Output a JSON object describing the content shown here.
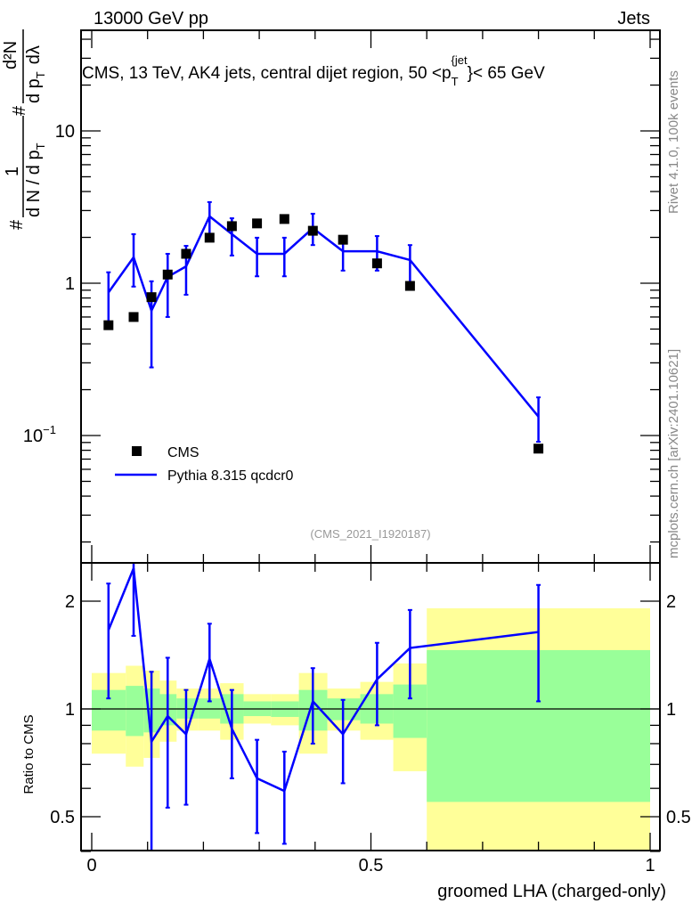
{
  "header": {
    "left": "13000 GeV pp",
    "right": "Jets"
  },
  "side_labels": {
    "rivet": "Rivet 4.1.0,  100k events",
    "mcplots": "mcplots.cern.ch [arXiv:2401.10621]"
  },
  "colors": {
    "cms": "#000000",
    "pythia": "#0000ff",
    "band_inner": "#99ff99",
    "band_outer": "#ffff99"
  },
  "chart_data": [
    {
      "type": "line",
      "title": "CMS, 13 TeV, AK4 jets, central dijet region, 50 <p",
      "title_sub": "T",
      "title_sup": "{jet",
      "title_end": "}< 65 GeV",
      "ylabel_parts": {
        "hash1": "#",
        "one": "1",
        "den1": "d N / d p",
        "sub1": "T",
        "hash2": "#",
        "num2": "d²N",
        "den2": "d p",
        "sub2": "T",
        "dl": "dλ"
      },
      "yscale": "log",
      "ylim": [
        0.0146,
        45
      ],
      "xlim": [
        -0.02,
        1.02
      ],
      "yticks": [
        {
          "v": 0.1,
          "label": "10",
          "sup": "−1"
        },
        {
          "v": 1,
          "label": "1",
          "sup": ""
        },
        {
          "v": 10,
          "label": "10",
          "sup": ""
        }
      ],
      "annotation": "(CMS_2021_I1920187)",
      "legend": {
        "position": "bottom-left",
        "entries": [
          "CMS",
          "Pythia 8.315 qcdcr0"
        ]
      },
      "x": [
        0.03,
        0.075,
        0.107,
        0.136,
        0.169,
        0.211,
        0.251,
        0.296,
        0.345,
        0.396,
        0.45,
        0.511,
        0.57,
        0.8
      ],
      "series": [
        {
          "name": "CMS",
          "values": [
            0.53,
            0.6,
            0.81,
            1.14,
            1.56,
            1.99,
            2.37,
            2.47,
            2.64,
            2.21,
            1.93,
            1.35,
            0.96,
            0.082
          ]
        },
        {
          "name": "Pythia 8.315 qcdcr0",
          "values": [
            0.87,
            1.48,
            0.66,
            1.1,
            1.29,
            2.75,
            2.1,
            1.56,
            1.56,
            2.3,
            1.62,
            1.62,
            1.42,
            0.133
          ],
          "err_high": [
            1.18,
            2.1,
            1.03,
            1.56,
            1.76,
            3.41,
            2.67,
            1.99,
            1.99,
            2.86,
            2.04,
            2.04,
            1.78,
            0.178
          ],
          "err_low": [
            0.56,
            0.95,
            0.28,
            0.6,
            0.84,
            2.1,
            1.52,
            1.11,
            1.11,
            1.78,
            1.21,
            1.21,
            0.97,
            0.091
          ]
        }
      ]
    },
    {
      "type": "line",
      "ylabel": "Ratio to CMS",
      "xlabel": "groomed LHA (charged-only)",
      "yscale": "log",
      "ylim": [
        0.4,
        2.56
      ],
      "xlim": [
        -0.02,
        1.02
      ],
      "yticks": [
        {
          "v": 0.5,
          "label": "0.5"
        },
        {
          "v": 1,
          "label": "1"
        },
        {
          "v": 2,
          "label": "2"
        }
      ],
      "xticks": [
        {
          "v": 0,
          "label": "0"
        },
        {
          "v": 0.5,
          "label": "0.5"
        },
        {
          "v": 1,
          "label": "1"
        }
      ],
      "bin_edges": [
        0,
        0.061,
        0.093,
        0.122,
        0.152,
        0.19,
        0.23,
        0.272,
        0.321,
        0.371,
        0.422,
        0.481,
        0.54,
        0.6,
        1.0
      ],
      "band_outer_high": [
        1.26,
        1.32,
        1.28,
        1.2,
        1.14,
        1.14,
        1.18,
        1.1,
        1.1,
        1.26,
        1.14,
        1.19,
        1.34,
        1.91
      ],
      "band_outer_low": [
        0.75,
        0.69,
        0.73,
        0.81,
        0.87,
        0.87,
        0.82,
        0.91,
        0.9,
        0.75,
        0.87,
        0.82,
        0.67,
        0.35
      ],
      "band_inner_high": [
        1.13,
        1.16,
        1.14,
        1.1,
        1.07,
        1.07,
        1.1,
        1.05,
        1.05,
        1.13,
        1.07,
        1.1,
        1.17,
        1.46
      ],
      "band_inner_low": [
        0.87,
        0.84,
        0.86,
        0.9,
        0.94,
        0.94,
        0.91,
        0.955,
        0.95,
        0.87,
        0.93,
        0.91,
        0.83,
        0.55
      ],
      "x": [
        0.03,
        0.075,
        0.107,
        0.136,
        0.169,
        0.211,
        0.251,
        0.296,
        0.345,
        0.396,
        0.45,
        0.511,
        0.57,
        0.8
      ],
      "series": [
        {
          "name": "Pythia 8.315 qcdcr0 / CMS",
          "values": [
            1.66,
            2.47,
            0.81,
            0.955,
            0.85,
            1.38,
            0.88,
            0.64,
            0.59,
            1.05,
            0.85,
            1.21,
            1.48,
            1.64
          ],
          "err_high": [
            2.24,
            3.5,
            1.27,
            1.39,
            1.13,
            1.73,
            1.13,
            0.82,
            0.76,
            1.3,
            1.06,
            1.53,
            1.89,
            2.22
          ],
          "err_low": [
            1.07,
            1.6,
            0.35,
            0.53,
            0.54,
            1.05,
            0.64,
            0.45,
            0.42,
            0.8,
            0.62,
            0.9,
            1.07,
            1.05
          ]
        }
      ]
    }
  ]
}
